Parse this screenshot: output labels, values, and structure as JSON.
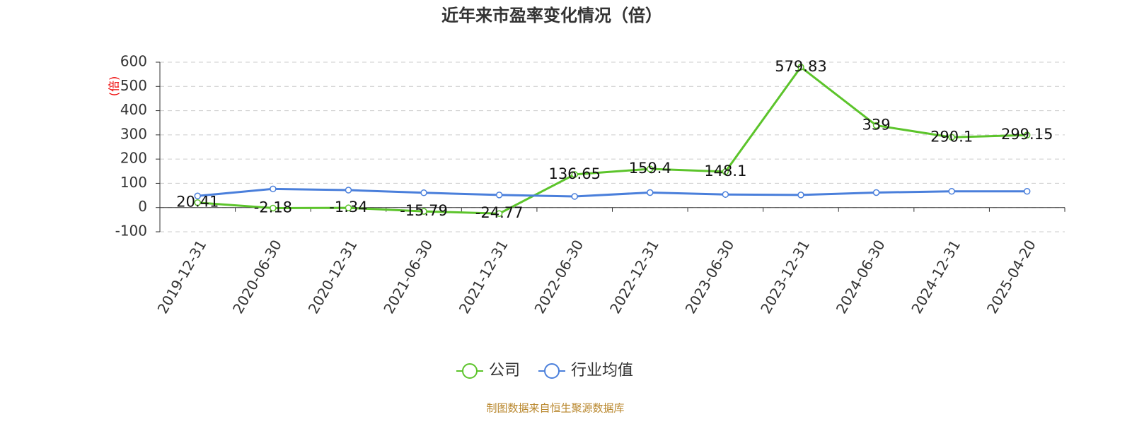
{
  "chart_data": {
    "type": "line",
    "title": "近年来市盈率变化情况（倍）",
    "y_label": "(倍)",
    "source": "制图数据来自恒生聚源数据库",
    "categories": [
      "2019-12-31",
      "2020-06-30",
      "2020-12-31",
      "2021-06-30",
      "2021-12-31",
      "2022-06-30",
      "2022-12-31",
      "2023-06-30",
      "2023-12-31",
      "2024-06-30",
      "2024-12-31",
      "2025-04-20"
    ],
    "series": [
      {
        "name": "公司",
        "color": "#5cc42b",
        "values": [
          20.41,
          -2.18,
          -1.34,
          -15.79,
          -24.77,
          136.65,
          159.4,
          148.1,
          579.83,
          339,
          290.1,
          299.15
        ],
        "labels": true
      },
      {
        "name": "行业均值",
        "color": "#4a7fdb",
        "values": [
          48,
          77,
          72,
          61,
          52,
          46,
          62,
          54,
          52,
          62,
          67,
          67
        ],
        "labels": false
      }
    ],
    "ylim": [
      -100,
      600
    ],
    "yticks": [
      -100,
      0,
      100,
      200,
      300,
      400,
      500,
      600
    ],
    "grid": true
  }
}
